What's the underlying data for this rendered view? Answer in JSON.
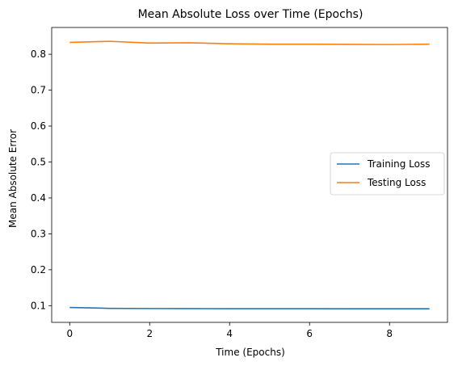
{
  "chart_data": {
    "type": "line",
    "title": "Mean Absolute Loss over Time (Epochs)",
    "xlabel": "Time (Epochs)",
    "ylabel": "Mean Absolute Error",
    "x": [
      0,
      1,
      2,
      3,
      4,
      5,
      6,
      7,
      8,
      9
    ],
    "xlim": [
      -0.45,
      9.45
    ],
    "ylim": [
      0.0535,
      0.8745
    ],
    "xticks": [
      0,
      2,
      4,
      6,
      8
    ],
    "yticks": [
      0.1,
      0.2,
      0.3,
      0.4,
      0.5,
      0.6,
      0.7,
      0.8
    ],
    "grid": false,
    "legend_position": "right",
    "series": [
      {
        "name": "Training Loss",
        "color": "#1f77b4",
        "values": [
          0.095,
          0.0925,
          0.092,
          0.0918,
          0.0916,
          0.0915,
          0.0915,
          0.0914,
          0.0914,
          0.0913
        ]
      },
      {
        "name": "Testing Loss",
        "color": "#ff7f0e",
        "values": [
          0.833,
          0.836,
          0.831,
          0.832,
          0.829,
          0.828,
          0.828,
          0.8275,
          0.827,
          0.828
        ]
      }
    ]
  }
}
